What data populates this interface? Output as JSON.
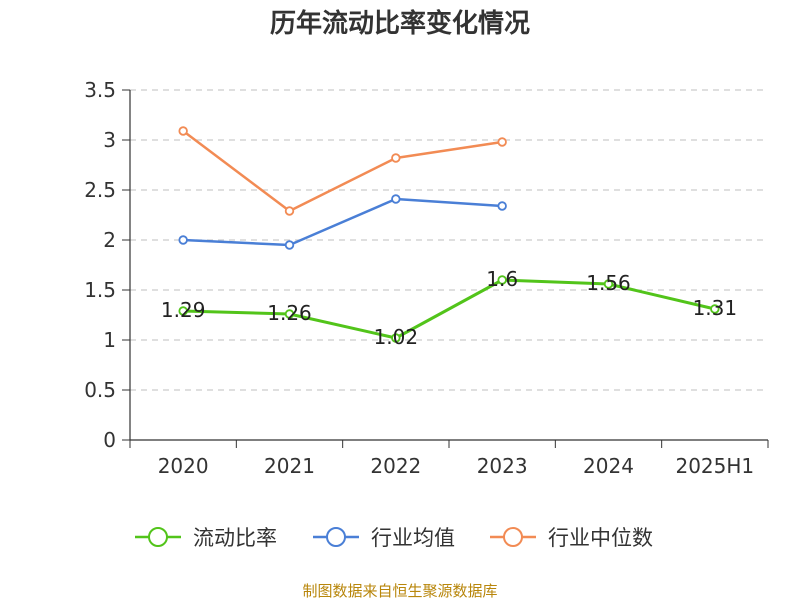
{
  "chart_data": {
    "type": "line",
    "title": "历年流动比率变化情况",
    "categories": [
      "2020",
      "2021",
      "2022",
      "2023",
      "2024",
      "2025H1"
    ],
    "ylim": [
      0,
      3.5
    ],
    "yticks": [
      "0",
      "0.5",
      "1",
      "1.5",
      "2",
      "2.5",
      "3",
      "3.5"
    ],
    "grid": true,
    "legend_position": "bottom",
    "series": [
      {
        "name": "流动比率",
        "color": "#52c41a",
        "values": [
          1.29,
          1.26,
          1.02,
          1.6,
          1.56,
          1.31
        ],
        "labels": [
          "1.29",
          "1.26",
          "1.02",
          "1.6",
          "1.56",
          "1.31"
        ]
      },
      {
        "name": "行业均值",
        "color": "#4a7fd6",
        "values": [
          2.0,
          1.95,
          2.41,
          2.34,
          null,
          null
        ]
      },
      {
        "name": "行业中位数",
        "color": "#f28b54",
        "values": [
          3.09,
          2.29,
          2.82,
          2.98,
          null,
          null
        ]
      }
    ]
  },
  "footer": {
    "source": "制图数据来自恒生聚源数据库"
  }
}
